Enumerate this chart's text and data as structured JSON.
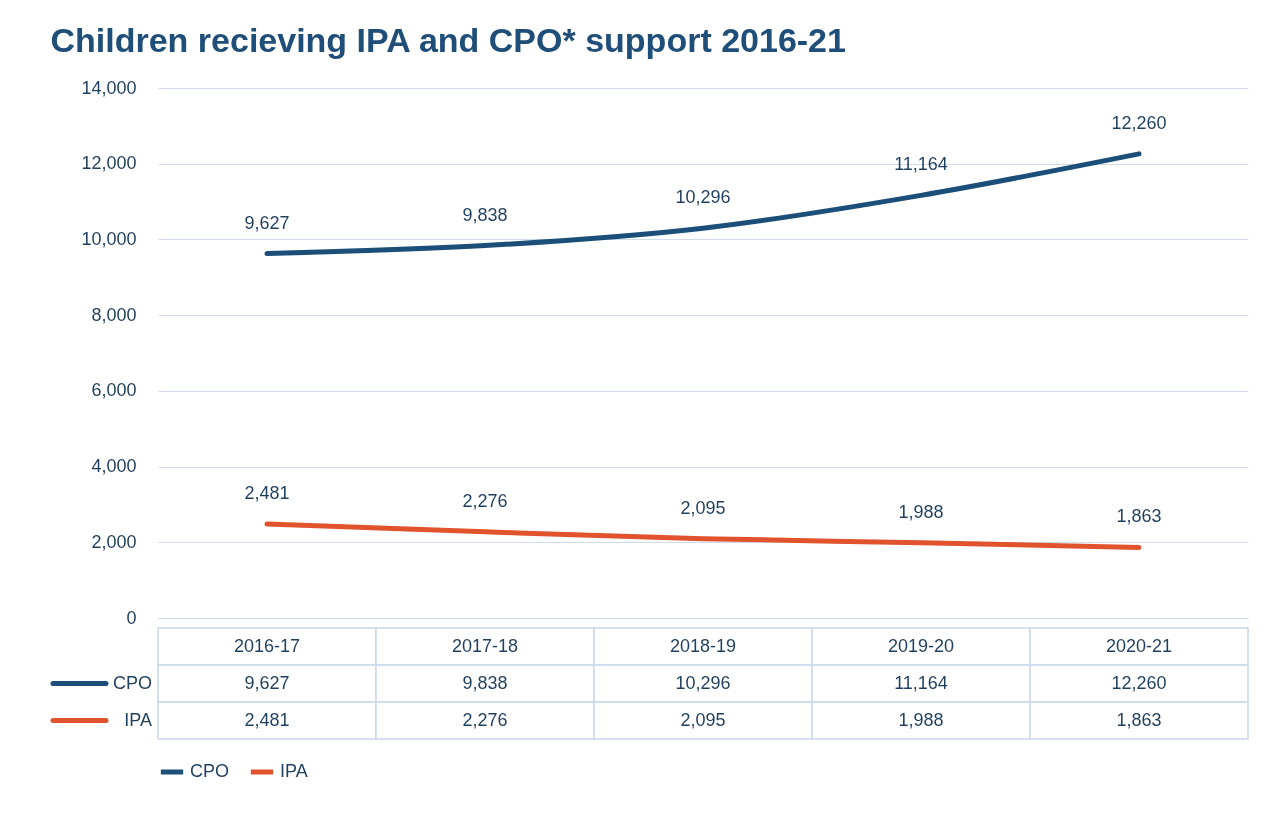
{
  "chart_data": {
    "type": "line",
    "title": "Children recieving IPA and CPO* support 2016-21",
    "categories": [
      "2016-17",
      "2017-18",
      "2018-19",
      "2019-20",
      "2020-21"
    ],
    "series": [
      {
        "name": "CPO",
        "color": "#1b4f7a",
        "values": [
          9627,
          9838,
          10296,
          11164,
          12260
        ],
        "value_labels": [
          "9,627",
          "9,838",
          "10,296",
          "11,164",
          "12,260"
        ]
      },
      {
        "name": "IPA",
        "color": "#e0532d",
        "values": [
          2481,
          2276,
          2095,
          1988,
          1863
        ],
        "value_labels": [
          "2,481",
          "2,276",
          "2,095",
          "1,988",
          "1,863"
        ]
      }
    ],
    "ylim": [
      0,
      14000
    ],
    "yticks": [
      0,
      {
        "value": 2000,
        "label": "2,000"
      },
      {
        "value": 4000,
        "label": "4,000"
      },
      {
        "value": 6000,
        "label": "6,000"
      },
      {
        "value": 8000,
        "label": "8,000"
      },
      {
        "value": 10000,
        "label": "10,000"
      },
      {
        "value": 12000,
        "label": "12,000"
      },
      {
        "value": 14000,
        "label": "14,000"
      }
    ],
    "grid": "y",
    "legend": "bottom"
  }
}
